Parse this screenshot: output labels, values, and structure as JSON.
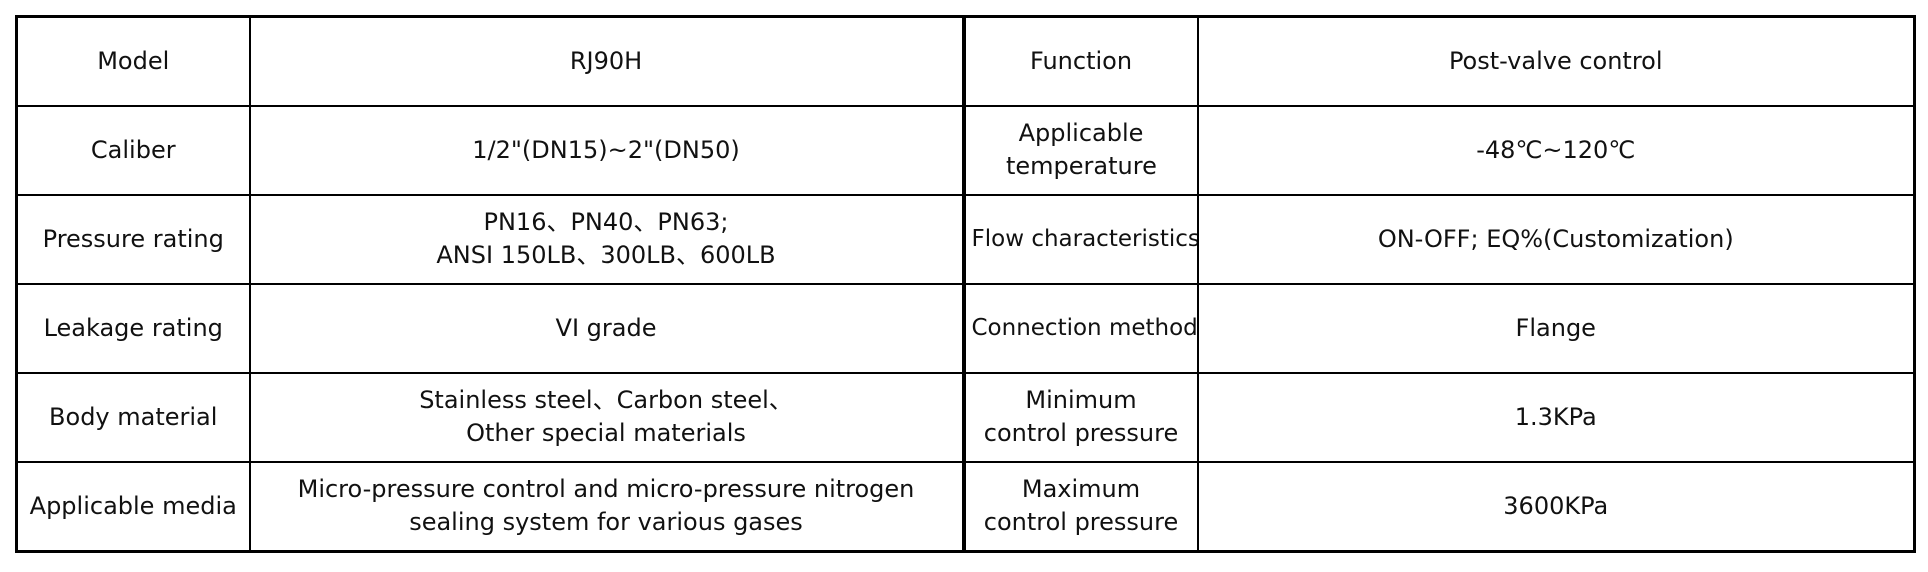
{
  "rows": [
    {
      "label1": "Model",
      "value1": "RJ90H",
      "label2": "Function",
      "value2": "Post-valve control"
    },
    {
      "label1": "Caliber",
      "value1": "1/2\"(DN15)~2\"(DN50)",
      "label2": "Applicable temperature",
      "value2": "-48℃~120℃"
    },
    {
      "label1": "Pressure rating",
      "value1": "PN16、PN40、PN63;\nANSI 150LB、300LB、600LB",
      "label2": "Flow characteristics",
      "value2": "ON-OFF; EQ%(Customization)"
    },
    {
      "label1": "Leakage rating",
      "value1": "VI grade",
      "label2": "Connection method",
      "value2": "Flange"
    },
    {
      "label1": "Body material",
      "value1": "Stainless steel、Carbon steel、\nOther special materials",
      "label2": "Minimum control pressure",
      "value2": "1.3KPa"
    },
    {
      "label1": "Applicable media",
      "value1": "Micro-pressure control and micro-pressure nitrogen sealing system for various gases",
      "label2": "Maximum control pressure",
      "value2": "3600KPa"
    }
  ]
}
